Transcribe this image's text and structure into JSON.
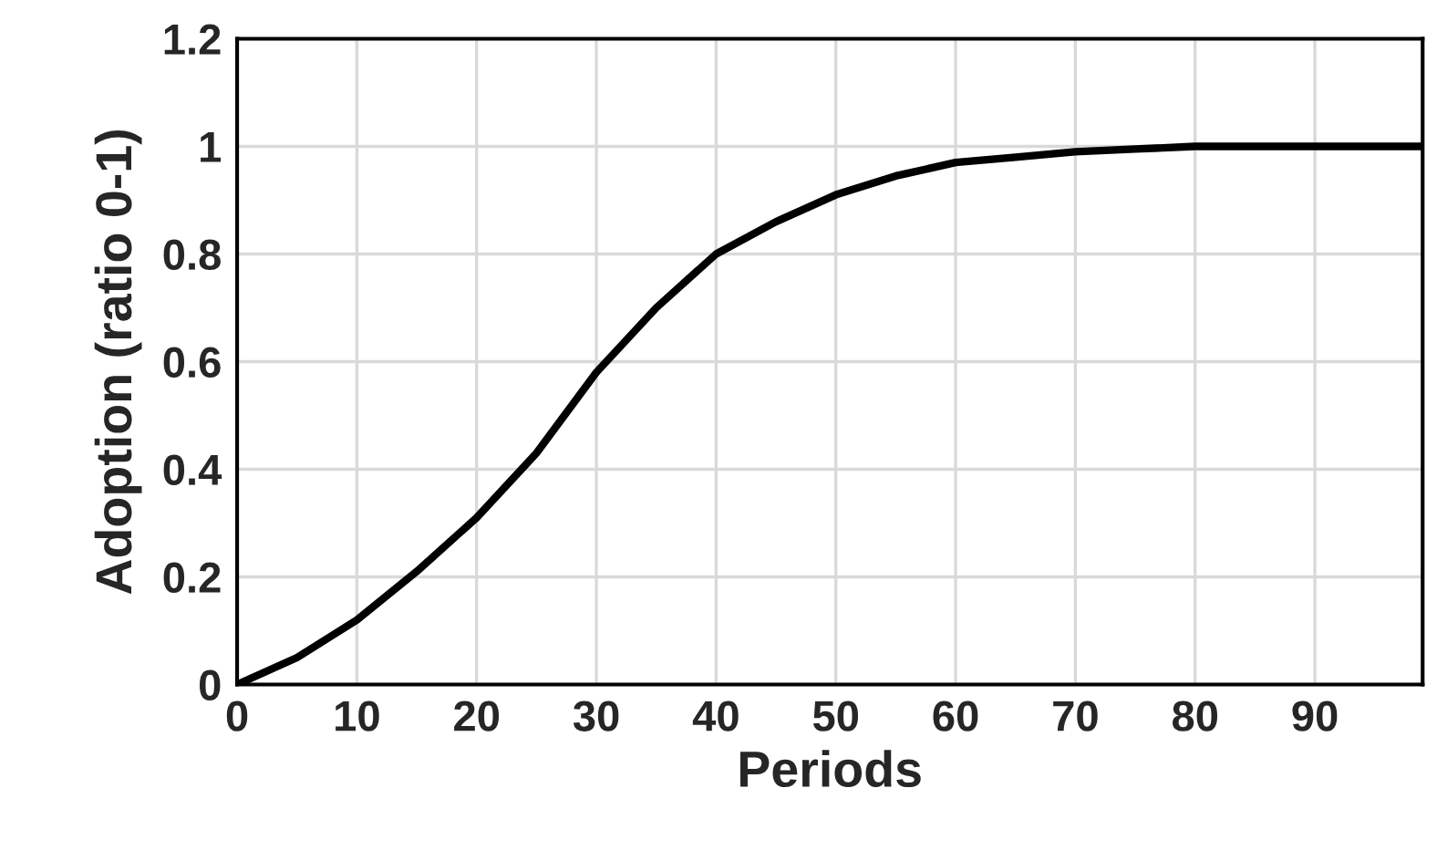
{
  "chart_data": {
    "type": "line",
    "xlabel": "Periods",
    "ylabel": "Adoption (ratio 0-1)",
    "x": [
      0,
      5,
      10,
      15,
      20,
      25,
      30,
      35,
      40,
      45,
      50,
      55,
      60,
      65,
      70,
      75,
      80,
      90,
      99
    ],
    "series": [
      {
        "color": "#000000",
        "values": [
          0,
          0.05,
          0.12,
          0.21,
          0.31,
          0.43,
          0.58,
          0.7,
          0.8,
          0.86,
          0.91,
          0.945,
          0.97,
          0.98,
          0.99,
          0.995,
          1.0,
          1.0,
          1.0
        ]
      }
    ],
    "xlim": [
      0,
      99
    ],
    "xticks": [
      0,
      10,
      20,
      30,
      40,
      50,
      60,
      70,
      80,
      90
    ],
    "ylim": [
      0,
      1.2
    ],
    "yticks": [
      0,
      0.2,
      0.4,
      0.6,
      0.8,
      1,
      1.2
    ],
    "grid": true,
    "marker": "none",
    "line_style": "solid"
  }
}
